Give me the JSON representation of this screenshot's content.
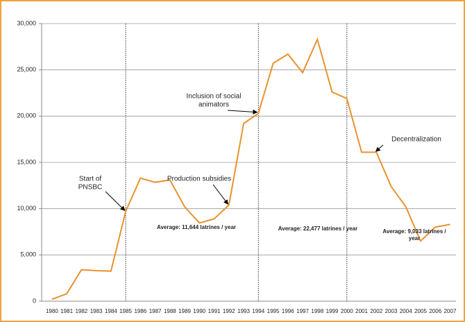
{
  "chart_data": {
    "type": "line",
    "x": [
      1980,
      1981,
      1982,
      1983,
      1984,
      1985,
      1986,
      1987,
      1988,
      1989,
      1990,
      1991,
      1992,
      1993,
      1994,
      1995,
      1996,
      1997,
      1998,
      1999,
      2000,
      2001,
      2002,
      2003,
      2004,
      2005,
      2006,
      2007
    ],
    "series": [
      {
        "name": "Latrines",
        "color": "#e8922e",
        "values": [
          200,
          800,
          3400,
          3300,
          3250,
          9700,
          13300,
          12850,
          13100,
          10200,
          8450,
          8900,
          10400,
          19200,
          20300,
          25700,
          26700,
          24700,
          28300,
          22600,
          21900,
          16100,
          16100,
          12400,
          10200,
          6500,
          8000,
          8300
        ]
      }
    ],
    "xlim": [
      1979.3,
      2007.4
    ],
    "ylim": [
      0,
      30000
    ],
    "yticks": [
      0,
      {
        "value": 5000,
        "label": "5,000"
      },
      {
        "value": 10000,
        "label": "10,000"
      },
      {
        "value": 15000,
        "label": "15,000"
      },
      {
        "value": 20000,
        "label": "20,000"
      },
      {
        "value": 25000,
        "label": "25,000"
      },
      {
        "value": 30000,
        "label": "30,000"
      }
    ],
    "grid": true,
    "vlines": [
      1985,
      1994,
      2000
    ],
    "annotations": [
      {
        "lines": [
          "Start of",
          "PNSBC"
        ],
        "x": 1985
      },
      {
        "lines": [
          "Production subsidies"
        ],
        "x": 1992
      },
      {
        "lines": [
          "Inclusion of social",
          "animators"
        ],
        "x": 1994
      },
      {
        "lines": [
          "Decentralization"
        ],
        "x": 2002
      }
    ],
    "averages": [
      {
        "lines": [
          "Average: 11,644 latrines / year"
        ]
      },
      {
        "lines": [
          "Average: 22,477 latrines / year"
        ]
      },
      {
        "lines": [
          "Average: 9,033 latrines /",
          "year"
        ]
      }
    ]
  }
}
